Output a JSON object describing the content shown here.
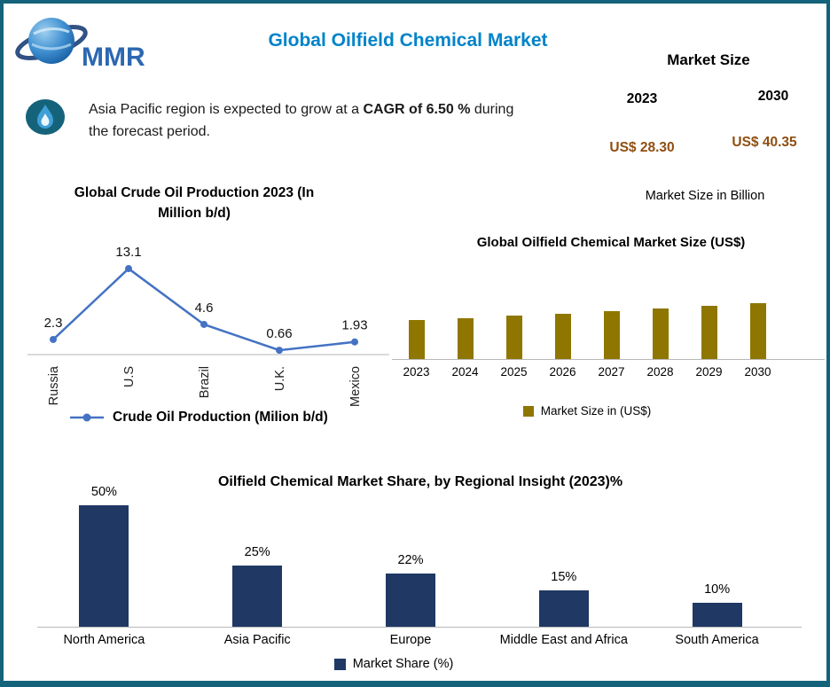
{
  "theme": {
    "teal": "#15637a",
    "accent_blue": "#0083c9",
    "brown": "#8f4e10",
    "axis_gray": "#b7b7b7"
  },
  "header": {
    "logo_text": "MMR",
    "title": "Global Oilfield Chemical Market",
    "market_size": {
      "label": "Market Size",
      "year_left": "2023",
      "year_right": "2030",
      "value_left": "US$ 28.30",
      "value_right": "US$ 40.35"
    }
  },
  "note": {
    "part1": "Asia Pacific region is expected to grow at a ",
    "bold": "CAGR of 6.50 %",
    "part2": " during",
    "part3": "the forecast period."
  },
  "chart_data": [
    {
      "type": "line",
      "title": "Global Crude Oil Production 2023 (In Million b/d)",
      "categories": [
        "Russia",
        "U.S",
        "Brazil",
        "U.K.",
        "Mexico"
      ],
      "values": [
        2.3,
        13.1,
        4.6,
        0.66,
        1.93
      ],
      "legend": "Crude Oil Production (Milion b/d)",
      "color": "#4472c4",
      "ylim": [
        0,
        14
      ],
      "data_labels": true,
      "x_tick_rotation": 90,
      "grid": false
    },
    {
      "type": "bar",
      "title": "Global Oilfield Chemical Market Size (US$)",
      "subtitle": "Market Size in Billion",
      "categories": [
        "2023",
        "2024",
        "2025",
        "2026",
        "2027",
        "2028",
        "2029",
        "2030"
      ],
      "values": [
        28.3,
        30.0,
        31.6,
        33.2,
        34.9,
        36.6,
        38.4,
        40.35
      ],
      "legend": "Market Size in (US$)",
      "color": "#8f7600",
      "ylabel": "Market Size in Billion",
      "grid": false,
      "legend_position": "bottom"
    },
    {
      "type": "bar",
      "title": "Oilfield Chemical Market Share, by Regional Insight (2023)%",
      "categories": [
        "North America",
        "Asia Pacific",
        "Europe",
        "Middle East and Africa",
        "South America"
      ],
      "values": [
        50,
        25,
        22,
        15,
        10
      ],
      "labels": [
        "50%",
        "25%",
        "22%",
        "15%",
        "10%"
      ],
      "legend": "Market Share (%)",
      "color": "#1f3864",
      "ylim": [
        0,
        55
      ],
      "data_labels": true,
      "grid": false,
      "legend_position": "bottom"
    }
  ]
}
